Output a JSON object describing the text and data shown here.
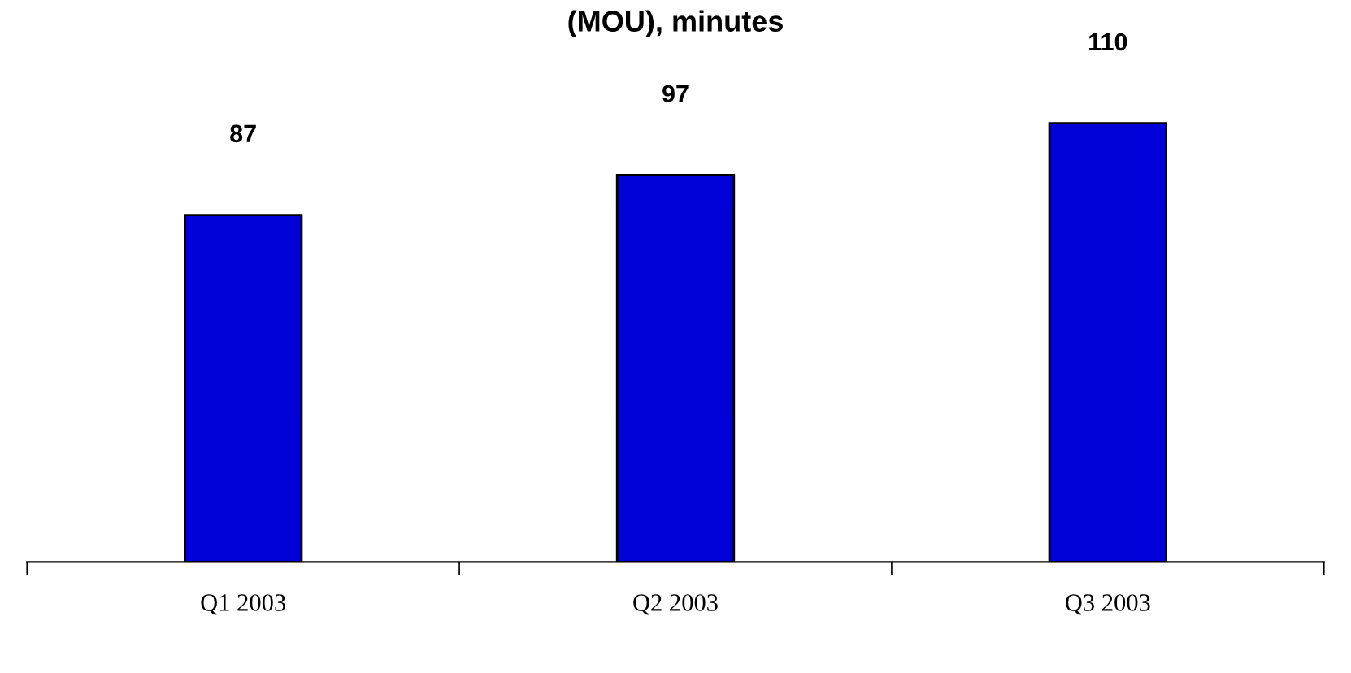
{
  "chart_data": {
    "type": "bar",
    "title": "(MOU), minutes",
    "categories": [
      "Q1 2003",
      "Q2 2003",
      "Q3 2003"
    ],
    "values": [
      87,
      97,
      110
    ],
    "color": "#0000d8",
    "data_labels": true,
    "grid": false,
    "legend": false
  }
}
